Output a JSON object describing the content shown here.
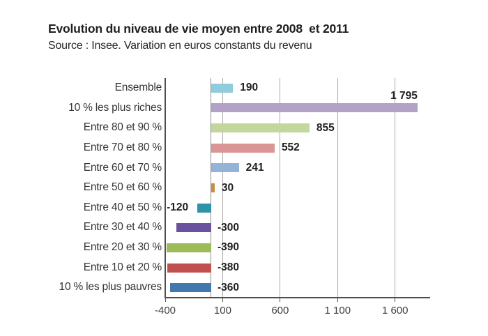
{
  "header": {
    "title": "Evolution du niveau de vie moyen entre 2008  et 2011",
    "subtitle": "Source : Insee. Variation en euros constants du revenu"
  },
  "chart_data": {
    "type": "bar",
    "orientation": "horizontal",
    "title": "Evolution du niveau de vie moyen entre 2008 et 2011",
    "subtitle": "Source : Insee. Variation en euros constants du revenu",
    "categories": [
      "Ensemble",
      "10 % les plus riches",
      "Entre 80 et 90 %",
      "Entre 70 et 80 %",
      "Entre 60 et 70 %",
      "Entre 50 et 60 %",
      "Entre 40 et 50 %",
      "Entre 30 et 40 %",
      "Entre 20 et 30 %",
      "Entre 10 et 20 %",
      "10 % les plus pauvres"
    ],
    "values": [
      190,
      1795,
      855,
      552,
      241,
      30,
      -120,
      -300,
      -390,
      -380,
      -360
    ],
    "value_labels": [
      "190",
      "1 795",
      "855",
      "552",
      "241",
      "30",
      "-120",
      "-300",
      "-390",
      "-380",
      "-360"
    ],
    "bar_colors": [
      "#8FCCDC",
      "#B3A2C7",
      "#C3D69B",
      "#D99694",
      "#95B3D7",
      "#CB8E46",
      "#2F93A8",
      "#6A529E",
      "#9CBB59",
      "#C0504D",
      "#4278B0"
    ],
    "value_label_positions": [
      "after",
      "above_end",
      "after",
      "after",
      "after",
      "after",
      "before",
      "base_right",
      "base_right",
      "base_right",
      "base_right"
    ],
    "xlabel": "",
    "ylabel": "",
    "xlim": [
      -400,
      1905
    ],
    "x_ticks": [
      -400,
      100,
      600,
      1100,
      1600
    ],
    "x_tick_labels": [
      "-400",
      "100",
      "600",
      "1 100",
      "1 600"
    ],
    "grid": "vertical-major",
    "zero_line": true,
    "legend": "none"
  },
  "colors": {
    "background": "#FFFFFF",
    "gridline": "#A8A8A8",
    "zero_line": "#8C8C8C",
    "axis": "#4D4D4D",
    "category_text": "#333333",
    "tick_text": "#3D3D3D",
    "value_text": "#1F1F1F",
    "title_text": "#1F1F1F"
  }
}
